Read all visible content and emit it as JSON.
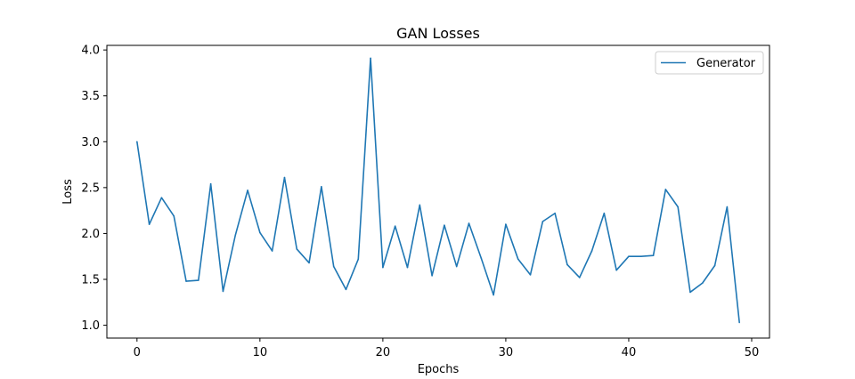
{
  "chart_data": {
    "type": "line",
    "title": "GAN Losses",
    "xlabel": "Epochs",
    "ylabel": "Loss",
    "xlim": [
      -2.45,
      51.45
    ],
    "ylim": [
      0.86,
      4.05
    ],
    "xticks": [
      0,
      10,
      20,
      30,
      40,
      50
    ],
    "xtick_labels": [
      "0",
      "10",
      "20",
      "30",
      "40",
      "50"
    ],
    "yticks": [
      1.0,
      1.5,
      2.0,
      2.5,
      3.0,
      3.5,
      4.0
    ],
    "ytick_labels": [
      "1.0",
      "1.5",
      "2.0",
      "2.5",
      "3.0",
      "3.5",
      "4.0"
    ],
    "grid": false,
    "legend_position": "top-right",
    "series": [
      {
        "name": "Generator",
        "color": "#1f77b4",
        "x": [
          0,
          1,
          2,
          3,
          4,
          5,
          6,
          7,
          8,
          9,
          10,
          11,
          12,
          13,
          14,
          15,
          16,
          17,
          18,
          19,
          20,
          21,
          22,
          23,
          24,
          25,
          26,
          27,
          28,
          29,
          30,
          31,
          32,
          33,
          34,
          35,
          36,
          37,
          38,
          39,
          40,
          41,
          42,
          43,
          44,
          45,
          46,
          47,
          48,
          49
        ],
        "values": [
          3.0,
          2.1,
          2.39,
          2.19,
          1.48,
          1.49,
          2.54,
          1.37,
          1.98,
          2.47,
          2.01,
          1.81,
          2.61,
          1.83,
          1.68,
          2.51,
          1.64,
          1.39,
          1.72,
          3.91,
          1.63,
          2.08,
          1.63,
          2.31,
          1.54,
          2.09,
          1.64,
          2.11,
          1.73,
          1.33,
          2.1,
          1.72,
          1.55,
          2.13,
          2.22,
          1.66,
          1.52,
          1.81,
          2.22,
          1.6,
          1.75,
          1.75,
          1.76,
          2.48,
          2.29,
          1.36,
          1.46,
          1.65,
          2.29,
          1.03
        ]
      }
    ]
  }
}
